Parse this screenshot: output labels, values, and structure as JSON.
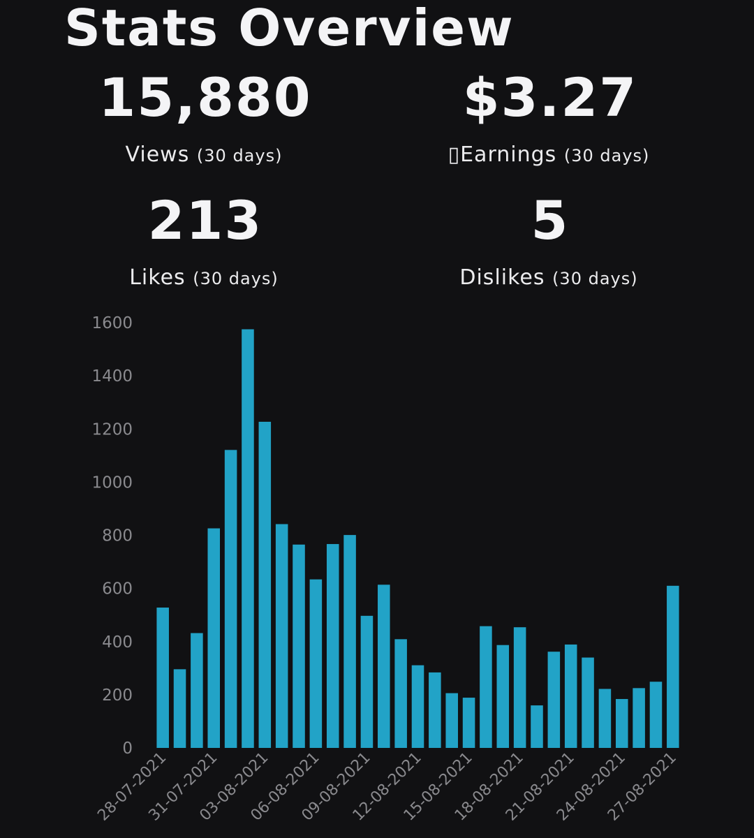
{
  "title": "Stats Overview",
  "stats": [
    {
      "value": "15,880",
      "label": "Views",
      "suffix": "(30 days)"
    },
    {
      "value": "$3.27",
      "label": "▯Earnings",
      "suffix": "(30 days)"
    },
    {
      "value": "213",
      "label": "Likes",
      "suffix": "(30 days)"
    },
    {
      "value": "5",
      "label": "Dislikes",
      "suffix": "(30 days)"
    }
  ],
  "colors": {
    "background": "#111113",
    "bar": "#22a3c7",
    "tick_text": "#8a8a8e"
  },
  "chart_data": {
    "type": "bar",
    "title": "",
    "xlabel": "",
    "ylabel": "",
    "ylim": [
      0,
      1600
    ],
    "yticks": [
      0,
      200,
      400,
      600,
      800,
      1000,
      1200,
      1400,
      1600
    ],
    "grid": false,
    "categories": [
      "28-07-2021",
      "29-07-2021",
      "30-07-2021",
      "31-07-2021",
      "01-08-2021",
      "02-08-2021",
      "03-08-2021",
      "04-08-2021",
      "05-08-2021",
      "06-08-2021",
      "07-08-2021",
      "08-08-2021",
      "09-08-2021",
      "10-08-2021",
      "11-08-2021",
      "12-08-2021",
      "13-08-2021",
      "14-08-2021",
      "15-08-2021",
      "16-08-2021",
      "17-08-2021",
      "18-08-2021",
      "19-08-2021",
      "20-08-2021",
      "21-08-2021",
      "22-08-2021",
      "23-08-2021",
      "24-08-2021",
      "25-08-2021",
      "26-08-2021",
      "27-08-2021"
    ],
    "values": [
      528,
      296,
      432,
      826,
      1121,
      1575,
      1227,
      842,
      765,
      634,
      767,
      801,
      497,
      614,
      409,
      311,
      284,
      206,
      189,
      458,
      387,
      454,
      160,
      362,
      389,
      340,
      222,
      184,
      225,
      249,
      610
    ],
    "labeled_categories": [
      "28-07-2021",
      "31-07-2021",
      "03-08-2021",
      "06-08-2021",
      "09-08-2021",
      "12-08-2021",
      "15-08-2021",
      "18-08-2021",
      "21-08-2021",
      "24-08-2021",
      "27-08-2021"
    ]
  }
}
